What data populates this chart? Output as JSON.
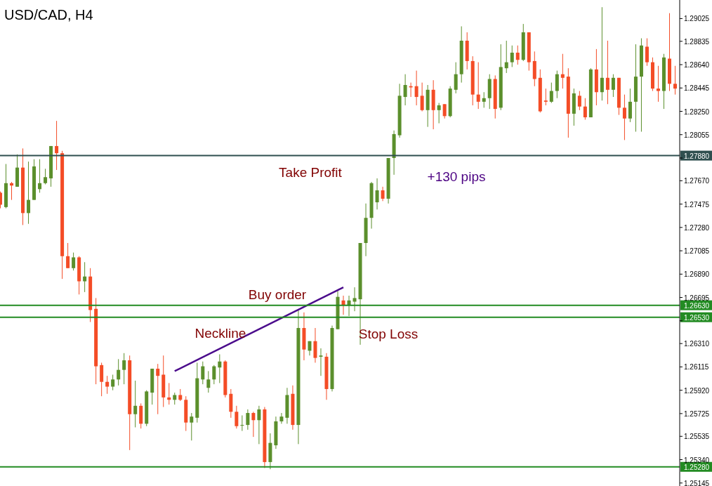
{
  "chart_data": {
    "type": "candlestick",
    "title": "USD/CAD, H4",
    "categories": [
      null,
      null,
      null,
      null,
      null,
      null,
      null,
      null,
      null,
      null,
      null,
      null,
      null,
      null,
      null,
      null,
      null,
      null,
      null,
      null,
      null,
      null,
      null,
      null,
      null,
      null,
      null,
      null,
      null,
      null,
      null,
      null,
      null,
      null,
      null,
      null,
      null,
      null,
      null,
      null,
      null,
      null,
      null,
      null,
      null,
      null,
      null,
      null,
      null,
      null,
      null,
      null,
      null,
      null,
      null,
      null,
      null,
      null,
      null,
      null,
      null,
      null,
      null,
      null,
      null,
      null,
      null,
      null,
      null,
      null,
      null,
      null,
      null,
      null,
      null,
      null,
      null,
      null,
      null,
      null,
      null,
      null,
      null,
      null,
      null,
      null,
      null,
      null,
      null,
      null,
      null,
      null,
      null,
      null,
      null,
      null,
      null,
      null,
      null,
      null,
      null,
      null,
      null,
      null,
      null,
      null,
      null,
      null,
      null,
      null,
      null,
      null,
      null,
      null,
      null,
      null,
      null,
      null,
      null,
      null,
      null
    ],
    "ohlc": [
      [
        1.2757,
        1.2758,
        1.2744,
        1.2747
      ],
      [
        1.2745,
        1.2781,
        1.2744,
        1.2765
      ],
      [
        1.2765,
        1.2766,
        1.2751,
        1.2763
      ],
      [
        1.2762,
        1.2789,
        1.2762,
        1.2778
      ],
      [
        1.2778,
        1.2794,
        1.273,
        1.274
      ],
      [
        1.274,
        1.2783,
        1.2731,
        1.2751
      ],
      [
        1.2751,
        1.2785,
        1.2751,
        1.2779
      ],
      [
        1.276,
        1.2785,
        1.2757,
        1.2765
      ],
      [
        1.2765,
        1.2777,
        1.2764,
        1.277
      ],
      [
        1.2769,
        1.2796,
        1.2762,
        1.2796
      ],
      [
        1.2796,
        1.2817,
        1.2776,
        1.279
      ],
      [
        1.279,
        1.2792,
        1.2685,
        1.2704
      ],
      [
        1.2704,
        1.2715,
        1.2694,
        1.2694
      ],
      [
        1.2694,
        1.2707,
        1.2692,
        1.2703
      ],
      [
        1.2703,
        1.2704,
        1.2672,
        1.2683
      ],
      [
        1.2683,
        1.2699,
        1.2674,
        1.2687
      ],
      [
        1.2687,
        1.2694,
        1.2649,
        1.2659
      ],
      [
        1.266,
        1.2669,
        1.2597,
        1.2612
      ],
      [
        1.2613,
        1.2615,
        1.2587,
        1.2599
      ],
      [
        1.2599,
        1.2604,
        1.2589,
        1.2595
      ],
      [
        1.2595,
        1.2605,
        1.2592,
        1.2601
      ],
      [
        1.2601,
        1.2618,
        1.2596,
        1.2609
      ],
      [
        1.2609,
        1.2623,
        1.2597,
        1.2617
      ],
      [
        1.2617,
        1.2621,
        1.2542,
        1.2572
      ],
      [
        1.2572,
        1.26,
        1.2561,
        1.2579
      ],
      [
        1.2579,
        1.2581,
        1.256,
        1.2564
      ],
      [
        1.2564,
        1.2592,
        1.2562,
        1.2591
      ],
      [
        1.259,
        1.261,
        1.258,
        1.261
      ],
      [
        1.261,
        1.2614,
        1.2572,
        1.2604
      ],
      [
        1.2605,
        1.2621,
        1.2578,
        1.2586
      ],
      [
        1.2586,
        1.2598,
        1.258,
        1.2584
      ],
      [
        1.2584,
        1.259,
        1.258,
        1.2588
      ],
      [
        1.2588,
        1.2593,
        1.2583,
        1.2584
      ],
      [
        1.2584,
        1.2587,
        1.2558,
        1.2565
      ],
      [
        1.2565,
        1.2573,
        1.255,
        1.257
      ],
      [
        1.2569,
        1.2615,
        1.2565,
        1.2602
      ],
      [
        1.2601,
        1.2616,
        1.2597,
        1.2612
      ],
      [
        1.2594,
        1.2608,
        1.259,
        1.2601
      ],
      [
        1.2601,
        1.2613,
        1.2597,
        1.2612
      ],
      [
        1.2611,
        1.2622,
        1.2598,
        1.2616
      ],
      [
        1.2616,
        1.2617,
        1.2586,
        1.2588
      ],
      [
        1.2589,
        1.2593,
        1.2569,
        1.2574
      ],
      [
        1.2574,
        1.2579,
        1.256,
        1.2562
      ],
      [
        1.2563,
        1.2571,
        1.2558,
        1.2563
      ],
      [
        1.2563,
        1.2576,
        1.2559,
        1.2573
      ],
      [
        1.2573,
        1.2574,
        1.2553,
        1.2567
      ],
      [
        1.2567,
        1.2579,
        1.2547,
        1.2576
      ],
      [
        1.2576,
        1.2578,
        1.2527,
        1.2532
      ],
      [
        1.2532,
        1.2556,
        1.2526,
        1.2548
      ],
      [
        1.2546,
        1.257,
        1.2543,
        1.2566
      ],
      [
        1.2566,
        1.2573,
        1.2564,
        1.257
      ],
      [
        1.2569,
        1.2594,
        1.2564,
        1.2588
      ],
      [
        1.2589,
        1.2596,
        1.2559,
        1.2563
      ],
      [
        1.2563,
        1.2659,
        1.2547,
        1.2644
      ],
      [
        1.2644,
        1.2657,
        1.2617,
        1.2626
      ],
      [
        1.2625,
        1.2633,
        1.2621,
        1.2633
      ],
      [
        1.2633,
        1.2644,
        1.2615,
        1.2619
      ],
      [
        1.262,
        1.2627,
        1.2604,
        1.2621
      ],
      [
        1.262,
        1.2623,
        1.2584,
        1.2593
      ],
      [
        1.2593,
        1.2646,
        1.2591,
        1.2644
      ],
      [
        1.2643,
        1.2675,
        1.2643,
        1.267
      ],
      [
        1.2667,
        1.2671,
        1.2655,
        1.2663
      ],
      [
        1.2663,
        1.2671,
        1.2654,
        1.2667
      ],
      [
        1.2666,
        1.2678,
        1.2658,
        1.2669
      ],
      [
        1.2668,
        1.2715,
        1.263,
        1.2715
      ],
      [
        1.2715,
        1.2748,
        1.2704,
        1.2736
      ],
      [
        1.2736,
        1.2766,
        1.2727,
        1.2765
      ],
      [
        1.2749,
        1.2769,
        1.2743,
        1.2759
      ],
      [
        1.2759,
        1.2762,
        1.275,
        1.2752
      ],
      [
        1.2752,
        1.2786,
        1.2748,
        1.2786
      ],
      [
        1.2786,
        1.2809,
        1.2772,
        1.2806
      ],
      [
        1.2805,
        1.2848,
        1.2803,
        1.2838
      ],
      [
        1.2837,
        1.2856,
        1.283,
        1.2847
      ],
      [
        1.2846,
        1.2849,
        1.2837,
        1.2845
      ],
      [
        1.2846,
        1.2859,
        1.283,
        1.2837
      ],
      [
        1.2838,
        1.2849,
        1.2825,
        1.2826
      ],
      [
        1.2826,
        1.2847,
        1.2812,
        1.2843
      ],
      [
        1.2843,
        1.2851,
        1.281,
        1.2826
      ],
      [
        1.2826,
        1.2832,
        1.2815,
        1.283
      ],
      [
        1.2831,
        1.2831,
        1.2819,
        1.2821
      ],
      [
        1.2821,
        1.2846,
        1.282,
        1.2844
      ],
      [
        1.2843,
        1.2866,
        1.284,
        1.2856
      ],
      [
        1.2856,
        1.2896,
        1.2849,
        1.2884
      ],
      [
        1.2884,
        1.2891,
        1.286,
        1.2867
      ],
      [
        1.2867,
        1.2871,
        1.283,
        1.2839
      ],
      [
        1.2839,
        1.2866,
        1.2827,
        1.2833
      ],
      [
        1.2833,
        1.2841,
        1.2828,
        1.2836
      ],
      [
        1.2836,
        1.2856,
        1.2827,
        1.2852
      ],
      [
        1.2852,
        1.2855,
        1.2819,
        1.2827
      ],
      [
        1.2828,
        1.2881,
        1.2826,
        1.2862
      ],
      [
        1.2861,
        1.2884,
        1.2857,
        1.2866
      ],
      [
        1.2866,
        1.288,
        1.2862,
        1.2874
      ],
      [
        1.2874,
        1.288,
        1.2864,
        1.2868
      ],
      [
        1.2868,
        1.2898,
        1.2867,
        1.2891
      ],
      [
        1.2891,
        1.2891,
        1.2859,
        1.2866
      ],
      [
        1.2867,
        1.2875,
        1.2846,
        1.2852
      ],
      [
        1.2853,
        1.286,
        1.2824,
        1.2825
      ],
      [
        1.2834,
        1.2844,
        1.283,
        1.2833
      ],
      [
        1.2833,
        1.2849,
        1.2832,
        1.2842
      ],
      [
        1.2842,
        1.2859,
        1.2836,
        1.2856
      ],
      [
        1.2856,
        1.2873,
        1.2844,
        1.2853
      ],
      [
        1.2854,
        1.2861,
        1.2803,
        1.2823
      ],
      [
        1.2823,
        1.2844,
        1.2813,
        1.284
      ],
      [
        1.2838,
        1.2842,
        1.2826,
        1.2829
      ],
      [
        1.2829,
        1.2836,
        1.2818,
        1.282
      ],
      [
        1.282,
        1.2861,
        1.282,
        1.286
      ],
      [
        1.286,
        1.2877,
        1.283,
        1.2841
      ],
      [
        1.2841,
        1.2912,
        1.2834,
        1.2853
      ],
      [
        1.2853,
        1.2884,
        1.2831,
        1.2843
      ],
      [
        1.2843,
        1.2856,
        1.2837,
        1.2853
      ],
      [
        1.2853,
        1.2853,
        1.2822,
        1.2828
      ],
      [
        1.2828,
        1.2839,
        1.2801,
        1.2819
      ],
      [
        1.2819,
        1.2844,
        1.2816,
        1.2833
      ],
      [
        1.2833,
        1.2881,
        1.2808,
        1.2854
      ],
      [
        1.2854,
        1.2886,
        1.2808,
        1.288
      ],
      [
        1.2879,
        1.2886,
        1.2863,
        1.2866
      ],
      [
        1.2866,
        1.287,
        1.2842,
        1.2844
      ],
      [
        1.2844,
        1.2863,
        1.2833,
        1.2842
      ],
      [
        1.2842,
        1.2873,
        1.2827,
        1.287
      ],
      [
        1.2869,
        1.2907,
        1.2842,
        1.2848
      ],
      [
        1.2848,
        1.2863,
        1.2839,
        1.2844
      ]
    ],
    "colors": [
      "#f44c26",
      "#5b8f2c",
      "#f44c26",
      "#5b8f2c",
      "#f44c26",
      "#5b8f2c",
      "#5b8f2c",
      "#5b8f2c",
      "#5b8f2c",
      "#5b8f2c",
      "#f44c26",
      "#f44c26",
      "#f44c26",
      "#5b8f2c",
      "#f44c26",
      "#5b8f2c",
      "#f44c26",
      "#f44c26",
      "#f44c26",
      "#f44c26",
      "#5b8f2c",
      "#5b8f2c",
      "#5b8f2c",
      "#f44c26",
      "#5b8f2c",
      "#f44c26",
      "#5b8f2c",
      "#5b8f2c",
      "#f44c26",
      "#f44c26",
      "#f44c26",
      "#5b8f2c",
      "#f44c26",
      "#f44c26",
      "#5b8f2c",
      "#5b8f2c",
      "#5b8f2c",
      "#5b8f2c",
      "#5b8f2c",
      "#5b8f2c",
      "#f44c26",
      "#f44c26",
      "#f44c26",
      "#5b8f2c",
      "#5b8f2c",
      "#f44c26",
      "#5b8f2c",
      "#f44c26",
      "#5b8f2c",
      "#5b8f2c",
      "#5b8f2c",
      "#5b8f2c",
      "#f44c26",
      "#5b8f2c",
      "#f44c26",
      "#5b8f2c",
      "#f44c26",
      "#5b8f2c",
      "#f44c26",
      "#5b8f2c",
      "#5b8f2c",
      "#f44c26",
      "#5b8f2c",
      "#5b8f2c",
      "#5b8f2c",
      "#5b8f2c",
      "#5b8f2c",
      "#5b8f2c",
      "#f44c26",
      "#5b8f2c",
      "#5b8f2c",
      "#5b8f2c",
      "#5b8f2c",
      "#f44c26",
      "#f44c26",
      "#f44c26",
      "#5b8f2c",
      "#f44c26",
      "#5b8f2c",
      "#f44c26",
      "#5b8f2c",
      "#5b8f2c",
      "#5b8f2c",
      "#f44c26",
      "#f44c26",
      "#f44c26",
      "#5b8f2c",
      "#5b8f2c",
      "#f44c26",
      "#5b8f2c",
      "#5b8f2c",
      "#5b8f2c",
      "#f44c26",
      "#5b8f2c",
      "#f44c26",
      "#f44c26",
      "#f44c26",
      "#f44c26",
      "#5b8f2c",
      "#5b8f2c",
      "#f44c26",
      "#f44c26",
      "#5b8f2c",
      "#f44c26",
      "#f44c26",
      "#5b8f2c",
      "#f44c26",
      "#5b8f2c",
      "#f44c26",
      "#5b8f2c",
      "#f44c26",
      "#f44c26",
      "#5b8f2c",
      "#5b8f2c",
      "#5b8f2c",
      "#f44c26",
      "#f44c26",
      "#f44c26",
      "#5b8f2c",
      "#f44c26",
      "#f44c26"
    ],
    "series": [
      {
        "type": "line",
        "color": "#4b0c8c",
        "values": [
          null,
          null,
          null,
          null,
          null,
          null,
          null,
          null,
          null,
          null,
          null,
          null,
          null,
          null,
          null,
          null,
          null,
          null,
          null,
          null,
          null,
          null,
          null,
          null,
          null,
          null,
          null,
          null,
          null,
          null,
          null,
          1.2608,
          null,
          null,
          null,
          null,
          null,
          null,
          null,
          null,
          null,
          null,
          null,
          null,
          null,
          null,
          null,
          null,
          null,
          null,
          null,
          null,
          null,
          null,
          null,
          null,
          null,
          null,
          null,
          null,
          null,
          1.2678,
          null,
          null,
          null,
          null,
          null,
          null,
          null,
          null,
          null,
          null,
          null,
          null,
          null,
          null,
          null,
          null,
          null,
          null,
          null,
          null,
          null,
          null,
          null,
          null,
          null,
          null,
          null,
          null,
          null,
          null,
          null,
          null,
          null,
          null,
          null,
          null,
          null,
          null,
          null,
          null,
          null,
          null,
          null,
          null,
          null,
          null,
          null,
          null,
          null,
          null,
          null,
          null,
          null,
          null,
          null,
          null,
          null,
          null,
          null
        ]
      }
    ],
    "ylim": [
      1.2512,
      1.2918
    ],
    "yticks": [
      1.29025,
      1.28835,
      {
        "value": 1.2864,
        "label": "1.28640"
      },
      1.28445,
      {
        "value": 1.2825,
        "label": "1.28250"
      },
      1.28055,
      {
        "value": 1.2786,
        "label": null
      },
      {
        "value": 1.2767,
        "label": "1.27670"
      },
      1.27475,
      {
        "value": 1.2728,
        "label": "1.27280"
      },
      1.27085,
      {
        "value": 1.2689,
        "label": "1.26890"
      },
      1.26695,
      {
        "value": 1.265,
        "label": null
      },
      {
        "value": 1.2631,
        "label": "1.26310"
      },
      1.26115,
      {
        "value": 1.2592,
        "label": "1.25920"
      },
      1.25725,
      1.25535,
      {
        "value": 1.2534,
        "label": "1.25340"
      },
      1.25145
    ],
    "ref_lines": [
      {
        "axis": "y",
        "value": 1.2788,
        "label": "1.27880",
        "color": "#2f4f4f"
      },
      {
        "axis": "y",
        "value": 1.2663,
        "label": "1.26630",
        "color": "#228b22"
      },
      {
        "axis": "y",
        "value": 1.2653,
        "label": "1.26530",
        "color": "#228b22"
      },
      {
        "axis": "y",
        "value": 1.2528,
        "label": "1.25280",
        "color": "#228b22"
      }
    ],
    "annotations": [
      "Take Profit",
      "+130 pips",
      "Buy order",
      "Neckline",
      "Stop Loss"
    ],
    "tick_labels": "y",
    "grid": false
  }
}
